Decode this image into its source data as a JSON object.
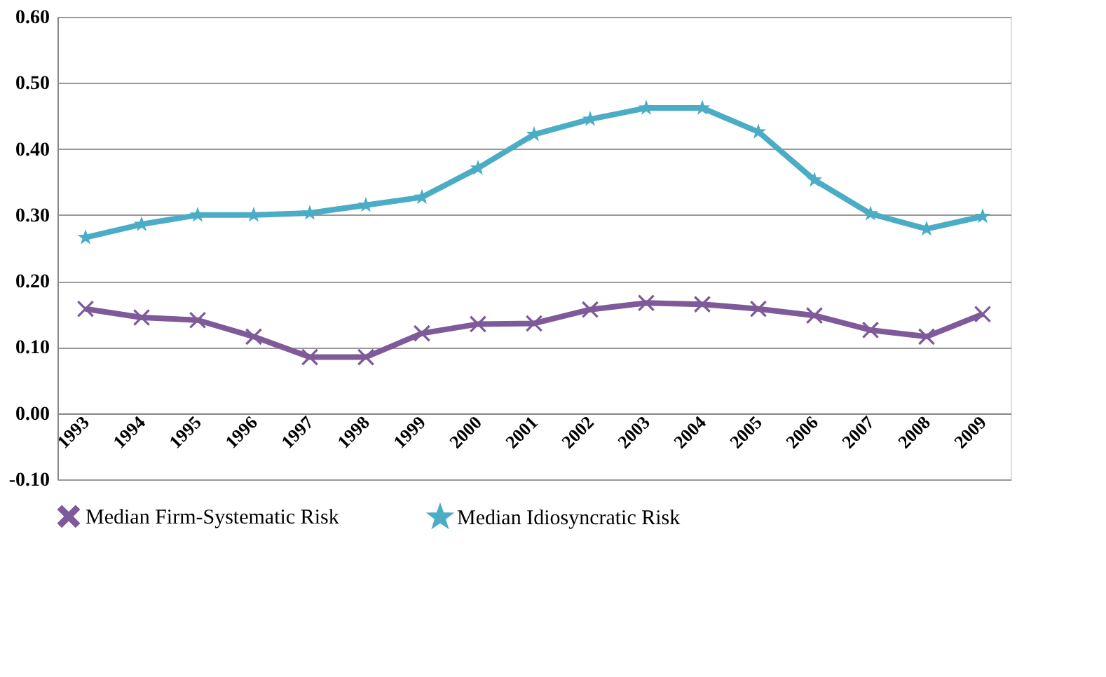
{
  "chart_data": {
    "type": "line",
    "categories": [
      "1993",
      "1994",
      "1995",
      "1996",
      "1997",
      "1998",
      "1999",
      "2000",
      "2001",
      "2002",
      "2003",
      "2004",
      "2005",
      "2006",
      "2007",
      "2008",
      "2009"
    ],
    "series": [
      {
        "name": "Median Firm-Systematic Risk",
        "color": "#7f5a9a",
        "marker": "cross",
        "values": [
          0.158,
          0.145,
          0.141,
          0.116,
          0.085,
          0.085,
          0.121,
          0.135,
          0.136,
          0.157,
          0.167,
          0.165,
          0.158,
          0.148,
          0.126,
          0.116,
          0.15
        ]
      },
      {
        "name": "Median Idiosyncratic Risk",
        "color": "#4bacc6",
        "marker": "star",
        "values": [
          0.266,
          0.286,
          0.3,
          0.3,
          0.303,
          0.315,
          0.327,
          0.371,
          0.422,
          0.445,
          0.462,
          0.462,
          0.426,
          0.353,
          0.302,
          0.279,
          0.298
        ]
      }
    ],
    "ylim": [
      -0.1,
      0.6
    ],
    "yticks": [
      {
        "value": -0.1,
        "label": "-0.10"
      },
      {
        "value": 0,
        "label": "0.00"
      },
      {
        "value": 0.1,
        "label": "0.10"
      },
      {
        "value": 0.2,
        "label": "0.20"
      },
      {
        "value": 0.3,
        "label": "0.30"
      },
      {
        "value": 0.4,
        "label": "0.40"
      },
      {
        "value": 0.5,
        "label": "0.50"
      },
      {
        "value": 0.6,
        "label": "0.60"
      }
    ],
    "grid": "y",
    "legend": "bottom",
    "line_style": "solid"
  }
}
